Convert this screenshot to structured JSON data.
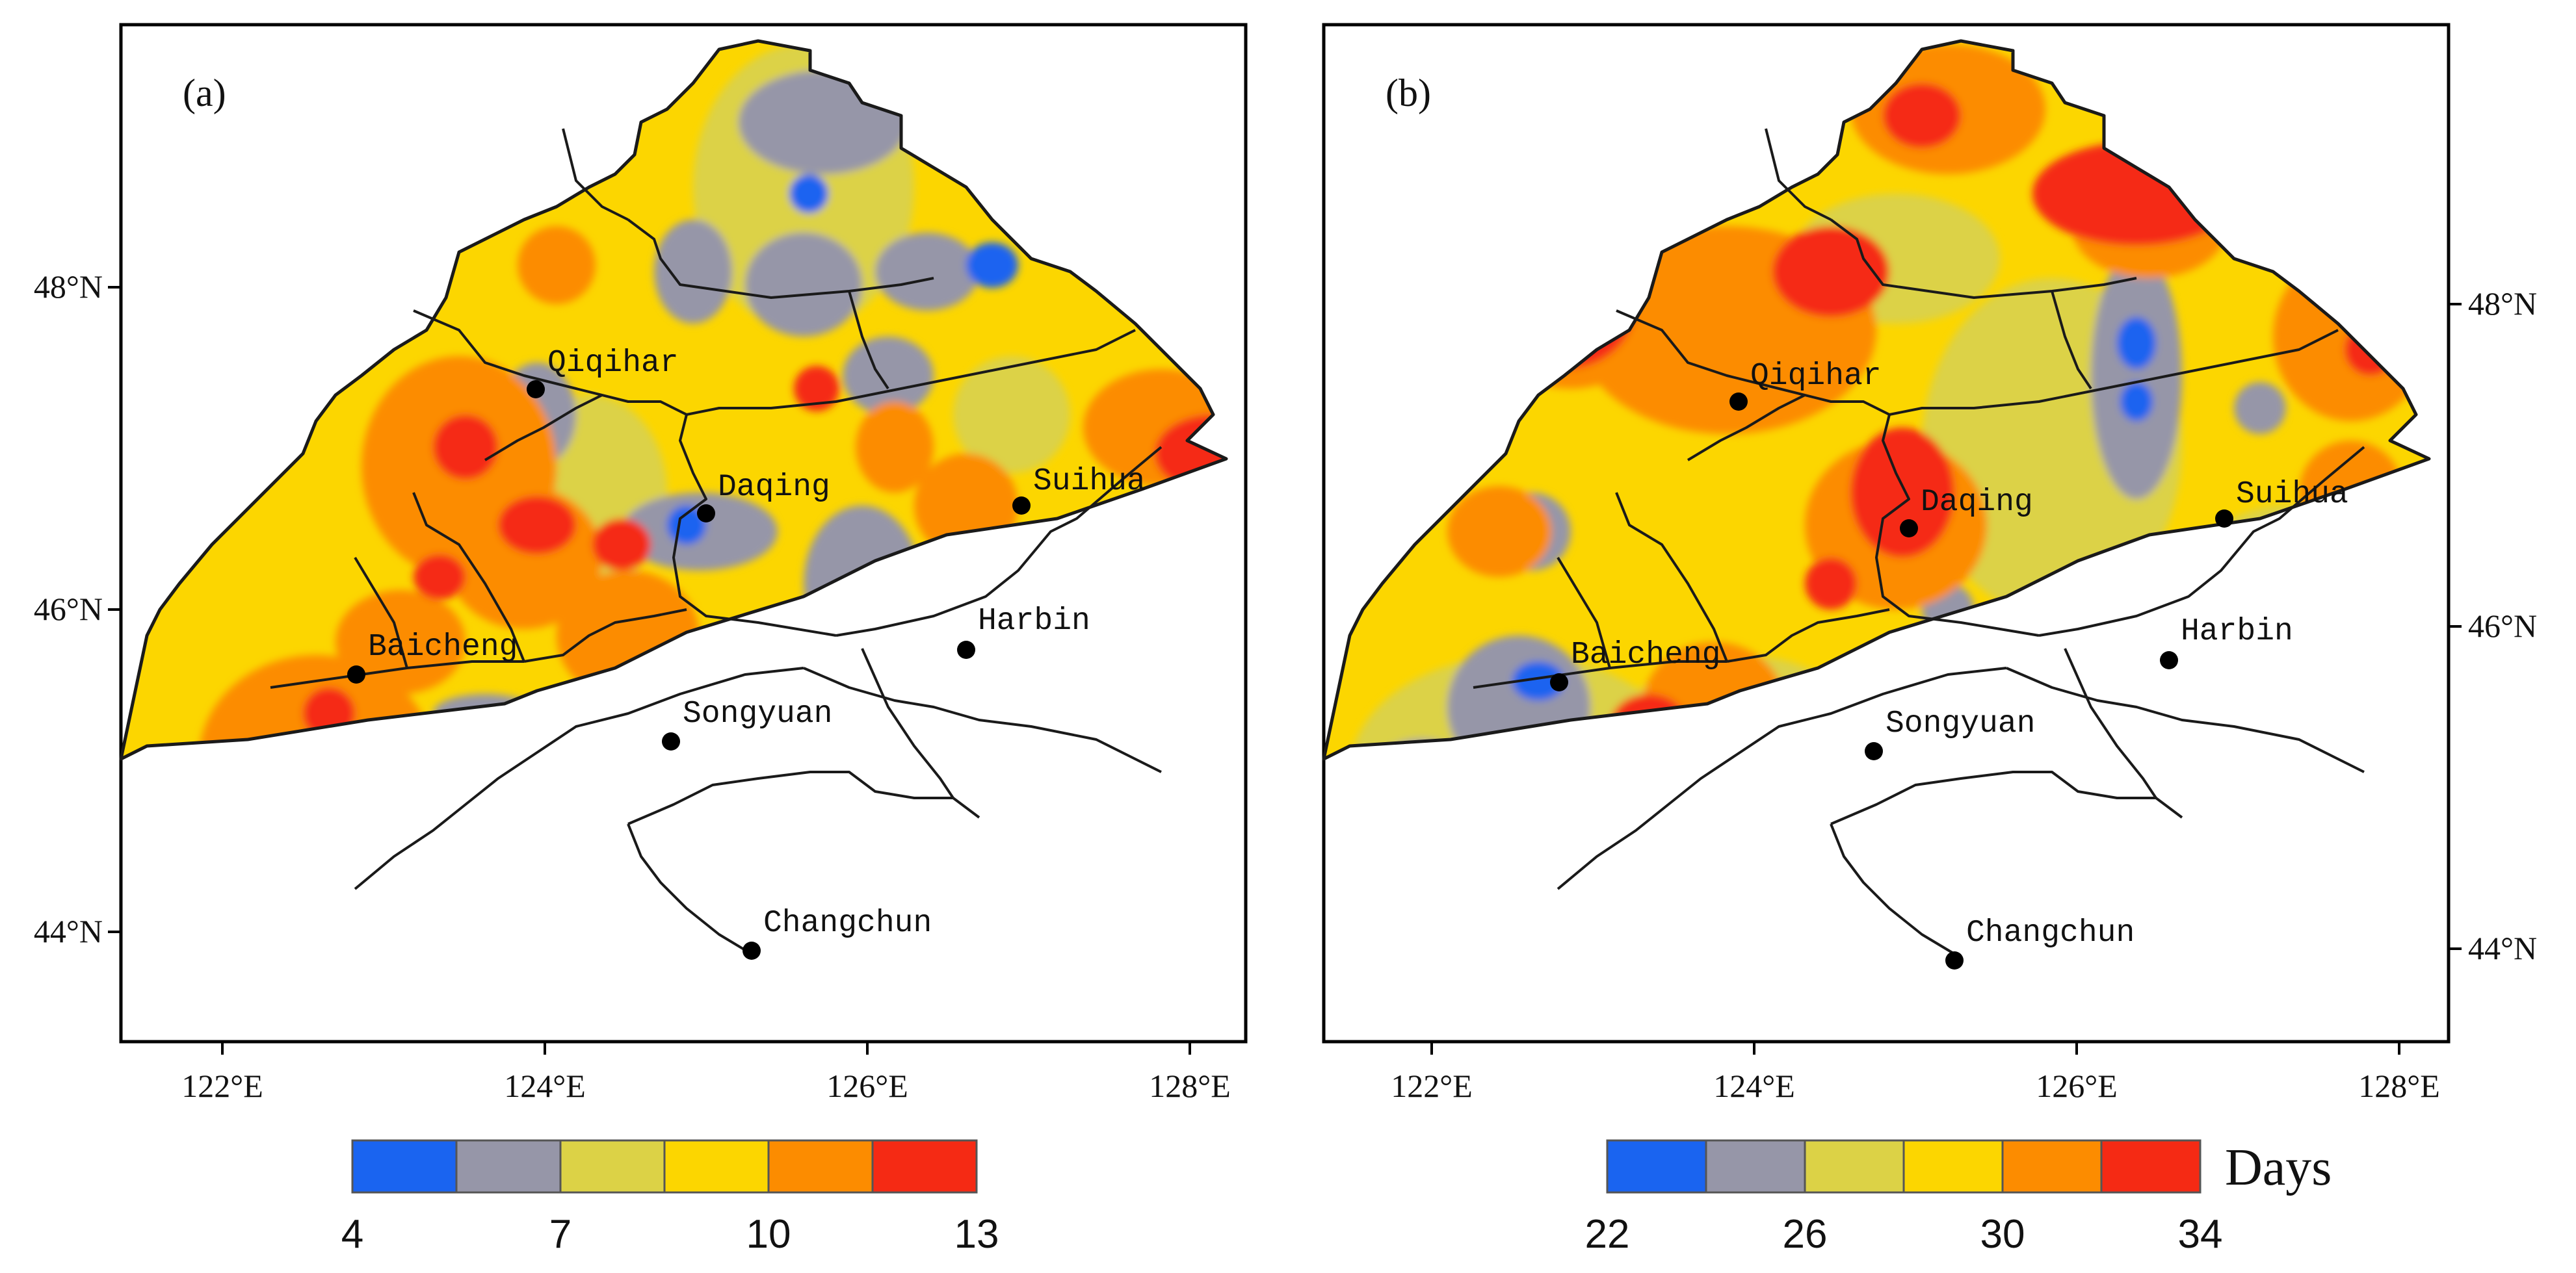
{
  "colors": {
    "class1": "#1a64f0",
    "class2": "#9696a8",
    "class3": "#dcd246",
    "class4": "#fcd600",
    "class5": "#fc8c00",
    "class6": "#f52a14"
  },
  "panels": [
    {
      "label": "(a)",
      "x_ticks": [
        "122°E",
        "124°E",
        "126°E",
        "128°E"
      ],
      "y_ticks": [
        "48°N",
        "46°N",
        "44°N"
      ],
      "y_axis_side": "left",
      "cities": [
        "Qiqihar",
        "Daqing",
        "Suihua",
        "Harbin",
        "Baicheng",
        "Songyuan",
        "Changchun"
      ],
      "legend": {
        "ticks": [
          "4",
          "7",
          "10",
          "13"
        ],
        "units": ""
      }
    },
    {
      "label": "(b)",
      "x_ticks": [
        "122°E",
        "124°E",
        "126°E",
        "128°E"
      ],
      "y_ticks": [
        "48°N",
        "46°N",
        "44°N"
      ],
      "y_axis_side": "right",
      "cities": [
        "Qiqihar",
        "Daqing",
        "Suihua",
        "Harbin",
        "Baicheng",
        "Songyuan",
        "Changchun"
      ],
      "legend": {
        "ticks": [
          "22",
          "26",
          "30",
          "34"
        ],
        "units": "Days"
      }
    }
  ]
}
